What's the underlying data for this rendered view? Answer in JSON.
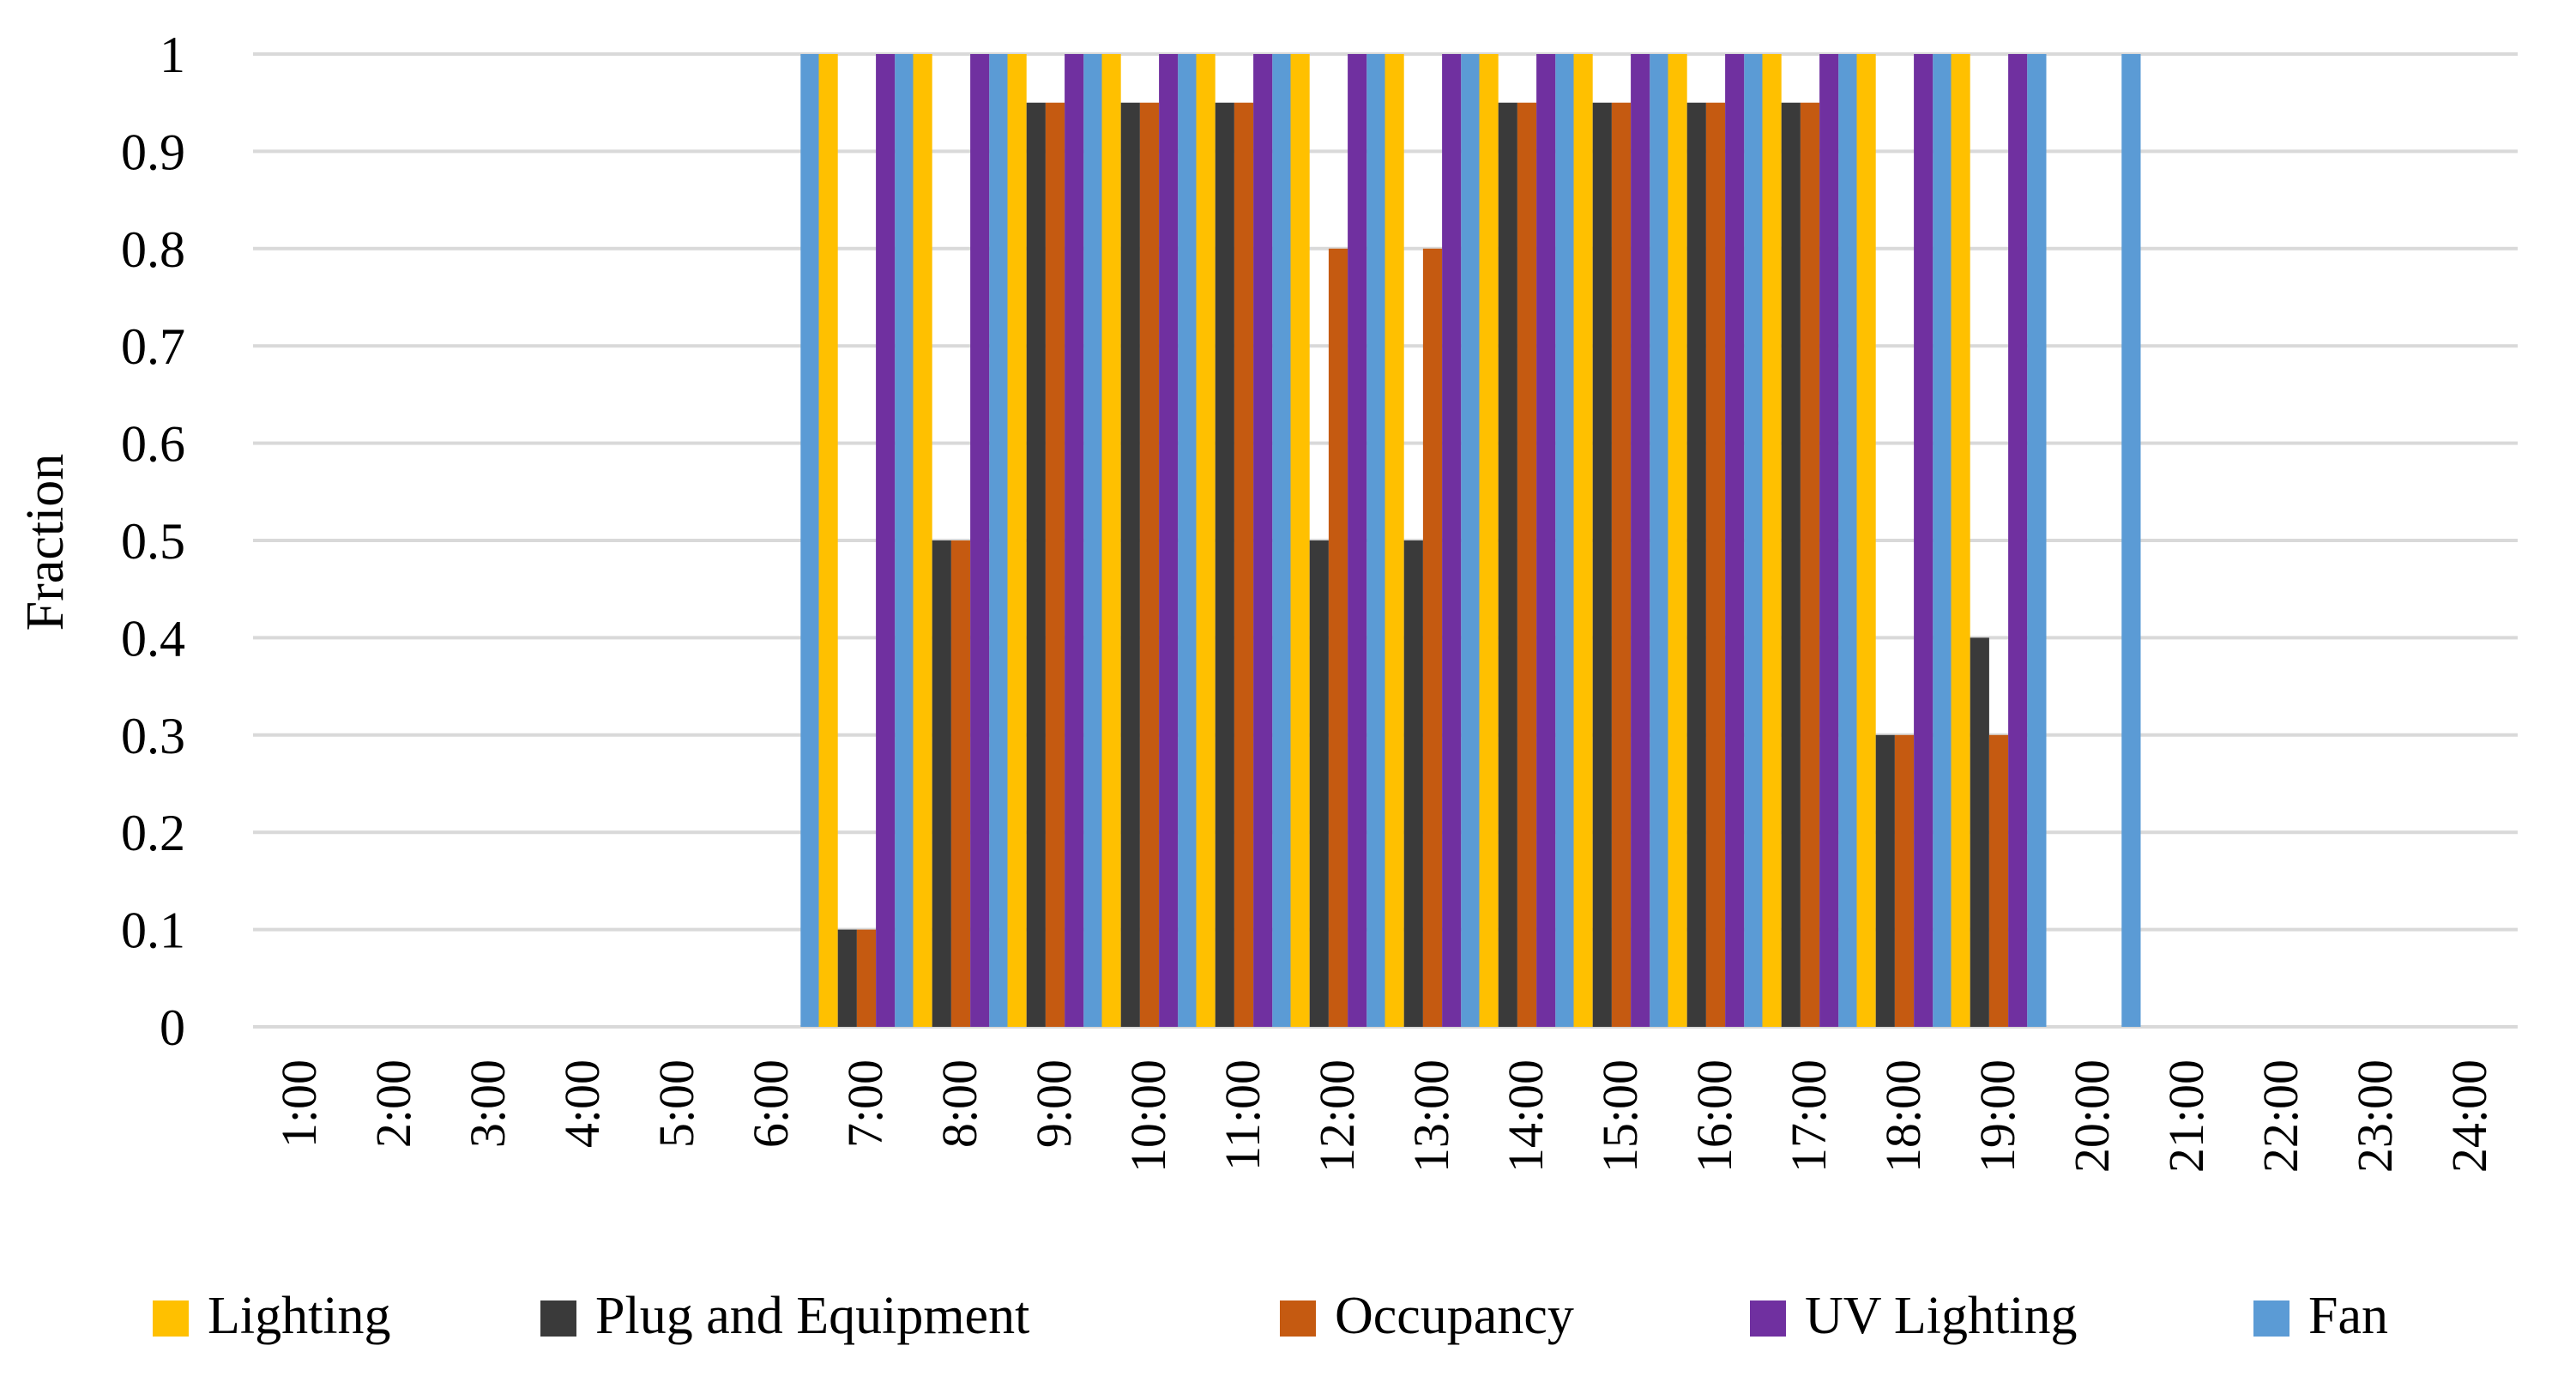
{
  "chart_data": {
    "type": "bar",
    "title": "",
    "xlabel": "",
    "ylabel": "Fraction",
    "ylim": [
      0,
      1
    ],
    "yticks": [
      0,
      0.1,
      0.2,
      0.3,
      0.4,
      0.5,
      0.6,
      0.7,
      0.8,
      0.9,
      1
    ],
    "ytick_labels": [
      "0",
      "0.1",
      "0.2",
      "0.3",
      "0.4",
      "0.5",
      "0.6",
      "0.7",
      "0.8",
      "0.9",
      "1"
    ],
    "grid": true,
    "legend_position": "bottom",
    "categories": [
      "1:00",
      "2:00",
      "3:00",
      "4:00",
      "5:00",
      "6:00",
      "7:00",
      "8:00",
      "9:00",
      "10:00",
      "11:00",
      "12:00",
      "13:00",
      "14:00",
      "15:00",
      "16:00",
      "17:00",
      "18:00",
      "19:00",
      "20:00",
      "21:00",
      "22:00",
      "23:00",
      "24:00"
    ],
    "series": [
      {
        "name": "Lighting",
        "color": "#FFC000",
        "values": [
          0,
          0,
          0,
          0,
          0,
          0,
          1,
          1,
          1,
          1,
          1,
          1,
          1,
          1,
          1,
          1,
          1,
          1,
          1,
          0,
          0,
          0,
          0,
          0
        ]
      },
      {
        "name": "Plug and Equipment",
        "color": "#3A3A3A",
        "values": [
          0,
          0,
          0,
          0,
          0,
          0,
          0.1,
          0.5,
          0.95,
          0.95,
          0.95,
          0.5,
          0.5,
          0.95,
          0.95,
          0.95,
          0.95,
          0.3,
          0.4,
          0,
          0,
          0,
          0,
          0
        ]
      },
      {
        "name": "Occupancy",
        "color": "#C55A11",
        "values": [
          0,
          0,
          0,
          0,
          0,
          0,
          0.1,
          0.5,
          0.95,
          0.95,
          0.95,
          0.8,
          0.8,
          0.95,
          0.95,
          0.95,
          0.95,
          0.3,
          0.3,
          0,
          0,
          0,
          0,
          0
        ]
      },
      {
        "name": "UV Lighting",
        "color": "#7030A0",
        "values": [
          0,
          0,
          0,
          0,
          0,
          0,
          1,
          1,
          1,
          1,
          1,
          1,
          1,
          1,
          1,
          1,
          1,
          1,
          1,
          0,
          0,
          0,
          0,
          0
        ]
      },
      {
        "name": "Fan",
        "color": "#5B9BD5",
        "values": [
          0,
          0,
          0,
          0,
          0,
          1,
          1,
          1,
          1,
          1,
          1,
          1,
          1,
          1,
          1,
          1,
          1,
          1,
          1,
          1,
          0,
          0,
          0,
          0
        ]
      }
    ]
  }
}
